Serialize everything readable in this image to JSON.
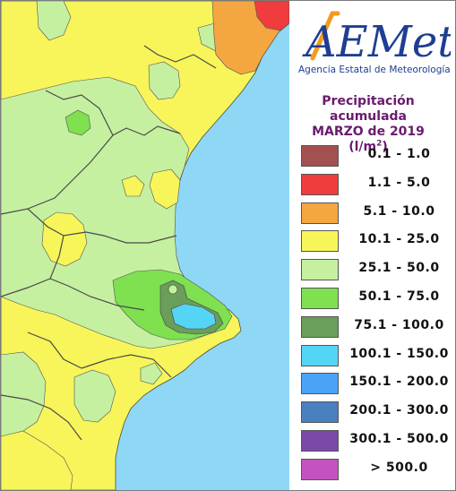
{
  "logo": {
    "brand": "AEMet",
    "subtitle": "Agencia Estatal de Meteorología"
  },
  "legend": {
    "title_line1": "Precipitación acumulada",
    "title_line2": "MARZO de 2019",
    "unit_prefix": "(l/m",
    "unit_exp": "2",
    "unit_suffix": ")",
    "items": [
      {
        "label": "0.1 - 1.0",
        "color": "#a35050"
      },
      {
        "label": "1.1 - 5.0",
        "color": "#f03c3c"
      },
      {
        "label": "5.1 - 10.0",
        "color": "#f4a640"
      },
      {
        "label": "10.1 - 25.0",
        "color": "#f7f55a"
      },
      {
        "label": "25.1 - 50.0",
        "color": "#c5f0a0"
      },
      {
        "label": "50.1 - 75.0",
        "color": "#7fe050"
      },
      {
        "label": "75.1 - 100.0",
        "color": "#6a9e5a"
      },
      {
        "label": "100.1 - 150.0",
        "color": "#55d5f5"
      },
      {
        "label": "150.1 - 200.0",
        "color": "#4aa3f7"
      },
      {
        "label": "200.1 - 300.0",
        "color": "#4a7fc0"
      },
      {
        "label": "300.1 - 500.0",
        "color": "#7a4aa8"
      },
      {
        "label": "> 500.0",
        "color": "#c453bf"
      }
    ]
  },
  "map_colors": {
    "sea": "#8fd8f5",
    "yellow": "#f7f55a",
    "light_green": "#c5f0a0",
    "green": "#7fe050",
    "dark_green": "#6a9e5a",
    "cyan": "#55d5f5",
    "orange": "#f4a640",
    "red": "#f03c3c",
    "border": "#4a4a4a"
  }
}
